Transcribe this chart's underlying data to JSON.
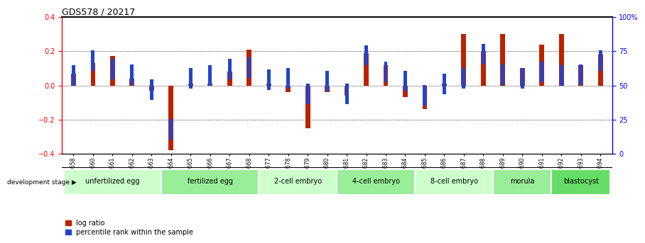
{
  "title": "GDS578 / 20217",
  "samples": [
    "GSM14658",
    "GSM14660",
    "GSM14661",
    "GSM14662",
    "GSM14663",
    "GSM14664",
    "GSM14665",
    "GSM14666",
    "GSM14667",
    "GSM14668",
    "GSM14677",
    "GSM14678",
    "GSM14679",
    "GSM14680",
    "GSM14681",
    "GSM14682",
    "GSM14683",
    "GSM14684",
    "GSM14685",
    "GSM14686",
    "GSM14687",
    "GSM14688",
    "GSM14689",
    "GSM14690",
    "GSM14691",
    "GSM14692",
    "GSM14693",
    "GSM14694"
  ],
  "log_ratio": [
    0.07,
    0.13,
    0.17,
    0.04,
    -0.03,
    -0.38,
    0.01,
    0.01,
    0.08,
    0.21,
    0.01,
    -0.04,
    -0.25,
    -0.04,
    -0.06,
    0.19,
    0.12,
    -0.07,
    -0.14,
    0.01,
    0.3,
    0.2,
    0.3,
    0.1,
    0.24,
    0.3,
    0.12,
    0.18
  ],
  "percentile_rank": [
    57,
    68,
    62,
    58,
    47,
    18,
    55,
    57,
    62,
    63,
    54,
    55,
    44,
    53,
    44,
    72,
    60,
    53,
    43,
    51,
    55,
    73,
    58,
    55,
    60,
    57,
    58,
    68
  ],
  "stages": [
    {
      "label": "unfertilized egg",
      "start": 0,
      "end": 5,
      "color": "#ccffcc"
    },
    {
      "label": "fertilized egg",
      "start": 5,
      "end": 10,
      "color": "#99ee99"
    },
    {
      "label": "2-cell embryo",
      "start": 10,
      "end": 14,
      "color": "#ccffcc"
    },
    {
      "label": "4-cell embryo",
      "start": 14,
      "end": 18,
      "color": "#99ee99"
    },
    {
      "label": "8-cell embryo",
      "start": 18,
      "end": 22,
      "color": "#ccffcc"
    },
    {
      "label": "morula",
      "start": 22,
      "end": 25,
      "color": "#99ee99"
    },
    {
      "label": "blastocyst",
      "start": 25,
      "end": 28,
      "color": "#66dd66"
    }
  ],
  "ylim_left": [
    -0.4,
    0.4
  ],
  "ylim_right": [
    0,
    100
  ],
  "yticks_left": [
    -0.4,
    -0.2,
    0.0,
    0.2,
    0.4
  ],
  "yticks_right": [
    0,
    25,
    50,
    75,
    100
  ],
  "ytick_labels_right": [
    "0",
    "25",
    "50",
    "75",
    "100%"
  ],
  "bar_color_red": "#bb2200",
  "bar_color_blue": "#2244cc",
  "background_color": "#ffffff",
  "plot_bg": "#ffffff",
  "title_fontsize": 9,
  "tick_fontsize": 7,
  "stage_fontsize": 7,
  "legend_fontsize": 7
}
